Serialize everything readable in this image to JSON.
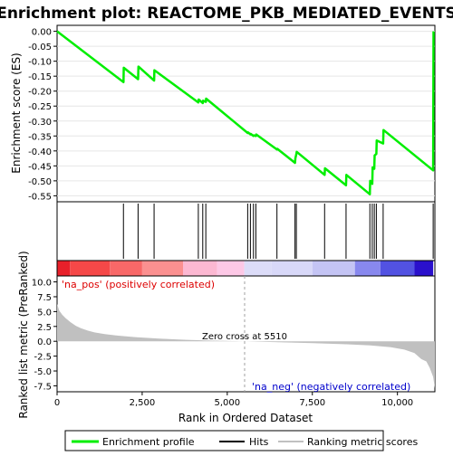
{
  "chart_data": {
    "type": "line",
    "title": "Enrichment plot: REACTOME_PKB_MEDIATED_EVENTS",
    "top_panel": {
      "ylabel": "Enrichment score (ES)",
      "ylim": [
        -0.57,
        0.02
      ],
      "yticks": [
        "0.00",
        "-0.05",
        "-0.10",
        "-0.15",
        "-0.20",
        "-0.25",
        "-0.30",
        "-0.35",
        "-0.40",
        "-0.45",
        "-0.50",
        "-0.55"
      ],
      "ytick_values": [
        0.0,
        -0.05,
        -0.1,
        -0.15,
        -0.2,
        -0.25,
        -0.3,
        -0.35,
        -0.4,
        -0.45,
        -0.5,
        -0.55
      ],
      "series": [
        {
          "name": "Enrichment profile",
          "color": "#00ee00",
          "x": [
            0,
            1950,
            1960,
            2380,
            2390,
            2850,
            2860,
            4150,
            4160,
            4280,
            4290,
            4370,
            4380,
            5600,
            5610,
            5680,
            5690,
            5770,
            5780,
            5840,
            5850,
            6460,
            6470,
            6990,
            7000,
            7030,
            7040,
            7860,
            7870,
            8490,
            8500,
            9190,
            9200,
            9260,
            9270,
            9320,
            9330,
            9380,
            9390,
            9580,
            9590,
            11050,
            11060
          ],
          "y": [
            0.0,
            -0.17,
            -0.122,
            -0.16,
            -0.118,
            -0.165,
            -0.13,
            -0.238,
            -0.228,
            -0.24,
            -0.232,
            -0.236,
            -0.225,
            -0.34,
            -0.338,
            -0.345,
            -0.343,
            -0.35,
            -0.348,
            -0.35,
            -0.345,
            -0.395,
            -0.393,
            -0.44,
            -0.425,
            -0.41,
            -0.403,
            -0.48,
            -0.458,
            -0.515,
            -0.48,
            -0.545,
            -0.5,
            -0.51,
            -0.455,
            -0.46,
            -0.415,
            -0.41,
            -0.365,
            -0.375,
            -0.33,
            -0.465,
            0.0
          ]
        }
      ]
    },
    "hits": {
      "name": "Hits",
      "positions": [
        1950,
        2380,
        2850,
        4150,
        4280,
        4370,
        5600,
        5680,
        5770,
        5840,
        6460,
        6990,
        7030,
        7860,
        8490,
        9190,
        9260,
        9320,
        9380,
        9580,
        11050
      ]
    },
    "color_bar": {
      "segments": [
        {
          "from": 0,
          "to": 380,
          "color": "#e8202a"
        },
        {
          "from": 380,
          "to": 1550,
          "color": "#f54848"
        },
        {
          "from": 1550,
          "to": 2500,
          "color": "#f86868"
        },
        {
          "from": 2500,
          "to": 3700,
          "color": "#fb9090"
        },
        {
          "from": 3700,
          "to": 4700,
          "color": "#fcb8d2"
        },
        {
          "from": 4700,
          "to": 5500,
          "color": "#fdc8e6"
        },
        {
          "from": 5500,
          "to": 6300,
          "color": "#dcdcf8"
        },
        {
          "from": 6300,
          "to": 7500,
          "color": "#d8d8f8"
        },
        {
          "from": 7500,
          "to": 8750,
          "color": "#c4c4f4"
        },
        {
          "from": 8750,
          "to": 9500,
          "color": "#8888ee"
        },
        {
          "from": 9500,
          "to": 10500,
          "color": "#5252e2"
        },
        {
          "from": 10500,
          "to": 11050,
          "color": "#2a10cc"
        }
      ]
    },
    "bottom_panel": {
      "ylabel": "Ranked list metric (PreRanked)",
      "xlabel": "Rank in Ordered Dataset",
      "ylim": [
        -8.5,
        11.0
      ],
      "yticks": [
        "10.0",
        "7.5",
        "5.0",
        "2.5",
        "0.0",
        "-2.5",
        "-5.0",
        "-7.5"
      ],
      "ytick_values": [
        10.0,
        7.5,
        5.0,
        2.5,
        0.0,
        -2.5,
        -5.0,
        -7.5
      ],
      "xlim": [
        0,
        11100
      ],
      "xticks": [
        "0",
        "2,500",
        "5,000",
        "7,500",
        "10,000"
      ],
      "xtick_values": [
        0,
        2500,
        5000,
        7500,
        10000
      ],
      "metric_profile": {
        "name": "Ranking metric scores",
        "x": [
          0,
          60,
          150,
          250,
          400,
          550,
          700,
          900,
          1100,
          1400,
          1800,
          2300,
          3000,
          3800,
          4600,
          5510,
          6500,
          7500,
          8500,
          9200,
          9800,
          10200,
          10500,
          10700,
          10850,
          10950,
          11050,
          11100
        ],
        "y": [
          6.3,
          5.2,
          4.5,
          3.9,
          3.2,
          2.6,
          2.2,
          1.8,
          1.5,
          1.2,
          0.95,
          0.7,
          0.45,
          0.25,
          0.1,
          0.0,
          -0.15,
          -0.3,
          -0.5,
          -0.7,
          -1.0,
          -1.4,
          -2.0,
          -3.0,
          -3.4,
          -4.5,
          -6.0,
          -7.9
        ]
      },
      "zero_cross_label": "Zero cross at 5510",
      "zero_cross_rank": 5510,
      "pos_label": "'na_pos' (positively correlated)",
      "neg_label": "'na_neg' (negatively correlated)"
    },
    "legend": {
      "placement": "bottom",
      "entries": [
        {
          "label": "Enrichment profile",
          "color": "#00ee00"
        },
        {
          "label": "Hits",
          "color": "#000000"
        },
        {
          "label": "Ranking metric scores",
          "color": "#c0c0c0"
        }
      ]
    },
    "colors": {
      "pos_label": "#dd0000",
      "neg_label": "#0000cc",
      "metric_fill": "#c0c0c0",
      "zero_line": "#a0a0a0"
    }
  }
}
